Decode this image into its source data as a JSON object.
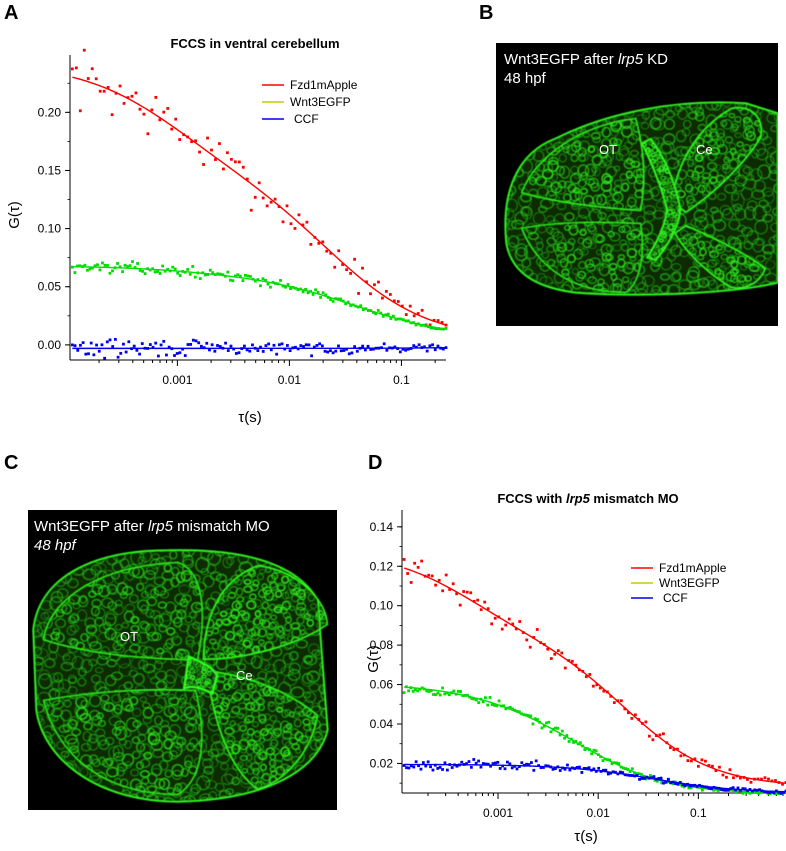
{
  "panels": {
    "A": "A",
    "B": "B",
    "C": "C",
    "D": "D"
  },
  "micrographs": [
    {
      "id": "B",
      "caption_prefix": "Wnt3EGFP after ",
      "caption_gene": "lrp5",
      "caption_suffix": " KD",
      "stage": "48 hpf",
      "stage_italic": false,
      "region_1": "OT",
      "region_2": "Ce"
    },
    {
      "id": "C",
      "caption_prefix": "Wnt3EGFP after ",
      "caption_gene": "lrp5",
      "caption_suffix": " mismatch MO",
      "stage": "48 hpf",
      "stage_italic": true,
      "region_1": "OT",
      "region_2": "Ce"
    }
  ],
  "colors": {
    "Fzd1mApple": "#ff0000",
    "Wnt3EGFP_fit": "#c8c800",
    "Wnt3EGFP_points": "#00dd00",
    "CCF": "#0000ee",
    "micrograph_signal": "#33ff22",
    "micrograph_background": "#000000"
  },
  "chart_data": [
    {
      "type": "scatter",
      "title": "FCCS in ventral cerebellum",
      "title_parts": [
        "FCCS in ventral cerebellum"
      ],
      "title_italic_index": -1,
      "xlabel": "τ(s)",
      "ylabel": "G(τ)",
      "x_scale": "log",
      "xlim": [
        0.00011,
        0.25
      ],
      "ylim": [
        -0.013,
        0.245
      ],
      "x_ticks": [
        0.001,
        0.01,
        0.1
      ],
      "x_tick_labels": [
        "0.001",
        "0.01",
        "0.1"
      ],
      "y_ticks": [
        0.0,
        0.05,
        0.1,
        0.15,
        0.2
      ],
      "y_tick_labels": [
        "0.00",
        "0.05",
        "0.10",
        "0.15",
        "0.20"
      ],
      "legend_position": "top-right",
      "series": [
        {
          "name": "Fzd1mApple",
          "color_key": "Fzd1mApple",
          "fit": {
            "a0": 0.004,
            "a1": 0.098,
            "t1": 0.0009,
            "a2": 0.14,
            "t2": 0.025
          },
          "points": {
            "noise": 0.018,
            "seed": 7,
            "n": 95
          }
        },
        {
          "name": "Wnt3EGFP",
          "color_key": "Wnt3EGFP_fit",
          "fit": {
            "a0": 0.006,
            "a1": 0.008,
            "t1": 0.0015,
            "a2": 0.054,
            "t2": 0.04
          },
          "points": {
            "noise": 0.0035,
            "seed": 13,
            "n": 150
          }
        },
        {
          "name": "CCF",
          "color_key": "CCF",
          "fit": {
            "a0": -0.003,
            "a1": 0.0,
            "t1": 0.001,
            "a2": 0.0,
            "t2": 0.04,
            "slope": 2.5e-06
          },
          "points": {
            "noise": 0.006,
            "seed": 29,
            "n": 140
          }
        }
      ]
    },
    {
      "type": "scatter",
      "title": "FCCS with lrp5 mismatch MO",
      "title_parts": [
        "FCCS with ",
        "lrp5",
        " mismatch MO"
      ],
      "title_italic_index": 1,
      "xlabel": "τ(s)",
      "ylabel": "G(τ)",
      "x_scale": "log",
      "xlim": [
        0.00011,
        0.75
      ],
      "ylim": [
        0.005,
        0.146
      ],
      "x_ticks": [
        0.001,
        0.01,
        0.1
      ],
      "x_tick_labels": [
        "0.001",
        "0.01",
        "0.1"
      ],
      "y_ticks": [
        0.02,
        0.04,
        0.06,
        0.08,
        0.1,
        0.12,
        0.14
      ],
      "y_tick_labels": [
        "0.02",
        "0.04",
        "0.06",
        "0.08",
        "0.10",
        "0.12",
        "0.14"
      ],
      "legend_position": "top-right",
      "series": [
        {
          "name": "Fzd1mApple",
          "color_key": "Fzd1mApple",
          "fit": {
            "a0": 0.008,
            "a1": 0.045,
            "t1": 0.0005,
            "a2": 0.075,
            "t2": 0.02
          },
          "points": {
            "noise": 0.0045,
            "seed": 41,
            "n": 110
          }
        },
        {
          "name": "Wnt3EGFP",
          "color_key": "Wnt3EGFP_fit",
          "fit": {
            "a0": 0.0045,
            "a1": 0.01,
            "t1": 0.001,
            "a2": 0.046,
            "t2": 0.007
          },
          "points": {
            "noise": 0.0018,
            "seed": 53,
            "n": 170
          }
        },
        {
          "name": "CCF",
          "color_key": "CCF",
          "fit": {
            "a0": 0.005,
            "a1": 0.0,
            "t1": 0.001,
            "a2": 0.0145,
            "t2": 0.035
          },
          "points": {
            "noise": 0.0018,
            "seed": 67,
            "n": 160
          }
        }
      ]
    }
  ]
}
